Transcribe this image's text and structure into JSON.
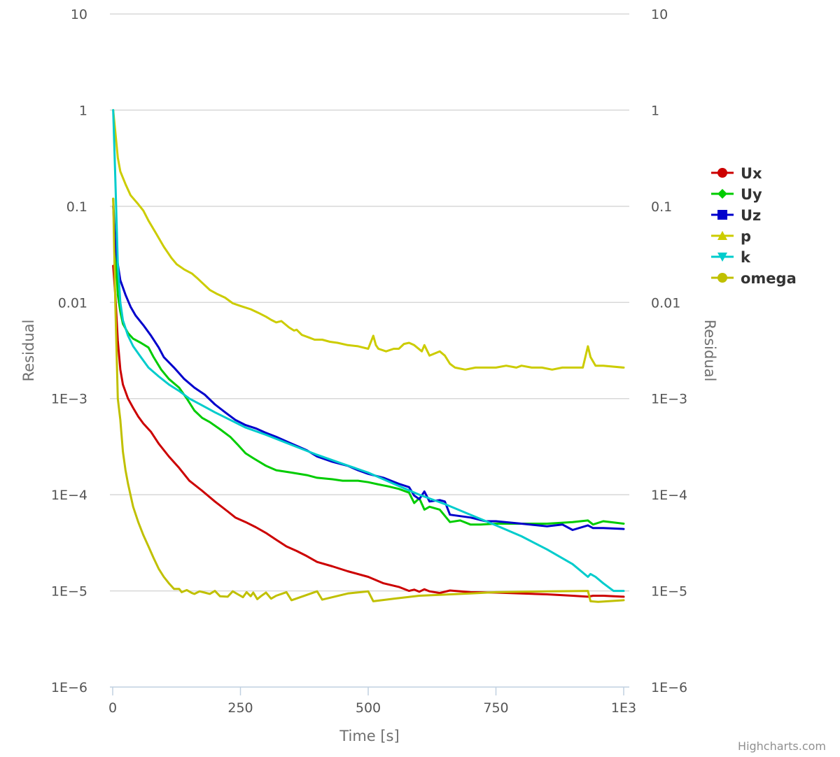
{
  "chart_data": {
    "type": "line",
    "title": "",
    "xlabel": "Time [s]",
    "ylabel": "Residual",
    "ylabel_right": "Residual",
    "xlim": [
      0,
      1000
    ],
    "ylim": [
      1e-06,
      10
    ],
    "y_scale": "log",
    "x_ticks": [
      0,
      250,
      500,
      750,
      1000
    ],
    "x_tick_labels": [
      "0",
      "250",
      "500",
      "750",
      "1E3"
    ],
    "y_ticks": [
      10,
      1,
      0.1,
      0.01,
      0.001,
      0.0001,
      1e-05,
      1e-06
    ],
    "y_tick_labels": [
      "10",
      "1",
      "0.1",
      "0.01",
      "1E−3",
      "1E−4",
      "1E−5",
      "1E−6"
    ],
    "grid": true,
    "legend_position": "right",
    "credits": "Highcharts.com",
    "series": [
      {
        "name": "Ux",
        "color": "#cc0000",
        "marker": "circle",
        "x": [
          1,
          5,
          10,
          15,
          20,
          30,
          40,
          50,
          60,
          75,
          90,
          110,
          130,
          150,
          175,
          200,
          225,
          240,
          260,
          280,
          300,
          320,
          340,
          360,
          380,
          400,
          430,
          460,
          500,
          530,
          560,
          580,
          590,
          600,
          610,
          620,
          640,
          660,
          700,
          750,
          800,
          850,
          900,
          930,
          940,
          960,
          1000
        ],
        "y": [
          0.024,
          0.012,
          0.004,
          0.002,
          0.0014,
          0.001,
          0.0008,
          0.00065,
          0.00055,
          0.00045,
          0.00034,
          0.00025,
          0.00019,
          0.00014,
          0.00011,
          8.5e-05,
          6.7e-05,
          5.8e-05,
          5.2e-05,
          4.6e-05,
          4e-05,
          3.4e-05,
          2.9e-05,
          2.6e-05,
          2.3e-05,
          2e-05,
          1.8e-05,
          1.6e-05,
          1.4e-05,
          1.2e-05,
          1.1e-05,
          1e-05,
          1.03e-05,
          9.8e-06,
          1.04e-05,
          9.9e-06,
          9.5e-06,
          1.01e-05,
          9.7e-06,
          9.6e-06,
          9.4e-06,
          9.2e-06,
          8.9e-06,
          8.7e-06,
          8.9e-06,
          8.9e-06,
          8.7e-06
        ]
      },
      {
        "name": "Uy",
        "color": "#00cc00",
        "marker": "diamond",
        "x": [
          1,
          5,
          10,
          15,
          20,
          30,
          40,
          55,
          70,
          80,
          95,
          110,
          130,
          145,
          160,
          175,
          190,
          210,
          230,
          245,
          260,
          275,
          300,
          320,
          350,
          380,
          400,
          430,
          450,
          480,
          500,
          520,
          540,
          560,
          580,
          590,
          600,
          610,
          620,
          640,
          660,
          680,
          700,
          720,
          750,
          800,
          850,
          900,
          930,
          940,
          960,
          1000
        ],
        "y": [
          0.12,
          0.04,
          0.012,
          0.008,
          0.006,
          0.0048,
          0.0042,
          0.0038,
          0.0034,
          0.0027,
          0.002,
          0.0016,
          0.0013,
          0.001,
          0.00075,
          0.00063,
          0.00057,
          0.00048,
          0.0004,
          0.00033,
          0.00027,
          0.00024,
          0.0002,
          0.00018,
          0.00017,
          0.00016,
          0.00015,
          0.000145,
          0.00014,
          0.00014,
          0.000135,
          0.000128,
          0.000122,
          0.000115,
          0.000105,
          8.2e-05,
          9.2e-05,
          7e-05,
          7.5e-05,
          7e-05,
          5.2e-05,
          5.4e-05,
          4.9e-05,
          4.9e-05,
          5e-05,
          5e-05,
          5e-05,
          5.2e-05,
          5.4e-05,
          4.9e-05,
          5.3e-05,
          5e-05
        ]
      },
      {
        "name": "Uz",
        "color": "#0000cc",
        "marker": "square",
        "x": [
          1,
          5,
          10,
          15,
          25,
          35,
          45,
          60,
          75,
          90,
          100,
          120,
          140,
          160,
          180,
          200,
          220,
          240,
          260,
          280,
          300,
          320,
          350,
          380,
          400,
          430,
          460,
          480,
          500,
          530,
          560,
          580,
          590,
          600,
          610,
          620,
          640,
          650,
          660,
          700,
          730,
          750,
          800,
          850,
          880,
          900,
          930,
          940,
          960,
          1000
        ],
        "y": [
          0.1,
          0.04,
          0.025,
          0.017,
          0.012,
          0.009,
          0.0073,
          0.0058,
          0.0045,
          0.0034,
          0.0027,
          0.0021,
          0.0016,
          0.0013,
          0.0011,
          0.00087,
          0.00072,
          0.0006,
          0.00053,
          0.00049,
          0.00044,
          0.0004,
          0.00034,
          0.00029,
          0.00025,
          0.00022,
          0.0002,
          0.00018,
          0.000165,
          0.00015,
          0.00013,
          0.00012,
          9.8e-05,
          9e-05,
          0.000108,
          8.5e-05,
          8.8e-05,
          8.5e-05,
          6.2e-05,
          5.8e-05,
          5.3e-05,
          5.3e-05,
          5e-05,
          4.7e-05,
          4.9e-05,
          4.3e-05,
          4.8e-05,
          4.5e-05,
          4.5e-05,
          4.4e-05
        ]
      },
      {
        "name": "p",
        "color": "#cccc00",
        "marker": "triangle",
        "x": [
          1,
          5,
          10,
          15,
          25,
          35,
          50,
          60,
          70,
          85,
          100,
          115,
          125,
          140,
          155,
          165,
          175,
          190,
          205,
          220,
          235,
          250,
          270,
          285,
          300,
          310,
          320,
          330,
          345,
          355,
          360,
          370,
          385,
          395,
          410,
          425,
          440,
          460,
          480,
          500,
          510,
          515,
          520,
          535,
          550,
          560,
          570,
          580,
          590,
          605,
          610,
          620,
          640,
          650,
          660,
          670,
          690,
          710,
          730,
          750,
          770,
          790,
          800,
          820,
          840,
          860,
          880,
          900,
          920,
          930,
          935,
          945,
          960,
          1000
        ],
        "y": [
          1,
          0.6,
          0.32,
          0.23,
          0.17,
          0.13,
          0.105,
          0.09,
          0.071,
          0.052,
          0.038,
          0.029,
          0.025,
          0.022,
          0.02,
          0.018,
          0.016,
          0.0135,
          0.0122,
          0.0112,
          0.0098,
          0.0092,
          0.0085,
          0.0078,
          0.0071,
          0.0066,
          0.0062,
          0.0064,
          0.0055,
          0.0051,
          0.0052,
          0.0046,
          0.0043,
          0.0041,
          0.0041,
          0.0039,
          0.0038,
          0.0036,
          0.0035,
          0.0033,
          0.0045,
          0.0036,
          0.0033,
          0.0031,
          0.0033,
          0.0033,
          0.0037,
          0.0038,
          0.0036,
          0.0031,
          0.0036,
          0.0028,
          0.0031,
          0.0028,
          0.0023,
          0.0021,
          0.002,
          0.0021,
          0.0021,
          0.0021,
          0.0022,
          0.0021,
          0.0022,
          0.0021,
          0.0021,
          0.002,
          0.0021,
          0.0021,
          0.0021,
          0.0035,
          0.0027,
          0.0022,
          0.0022,
          0.0021
        ]
      },
      {
        "name": "k",
        "color": "#00cccc",
        "marker": "triangle-down",
        "x": [
          1,
          5,
          10,
          15,
          20,
          30,
          40,
          55,
          70,
          90,
          110,
          130,
          150,
          175,
          200,
          230,
          260,
          300,
          350,
          400,
          450,
          500,
          550,
          600,
          650,
          700,
          750,
          800,
          850,
          900,
          930,
          935,
          945,
          960,
          980,
          1000
        ],
        "y": [
          1,
          0.2,
          0.025,
          0.01,
          0.0065,
          0.0045,
          0.0035,
          0.0027,
          0.0021,
          0.0017,
          0.0014,
          0.0012,
          0.001,
          0.00085,
          0.00072,
          0.0006,
          0.0005,
          0.00042,
          0.00033,
          0.00026,
          0.00021,
          0.00017,
          0.00013,
          0.0001,
          8e-05,
          6.2e-05,
          4.8e-05,
          3.7e-05,
          2.7e-05,
          1.9e-05,
          1.4e-05,
          1.5e-05,
          1.4e-05,
          1.2e-05,
          1e-05,
          1e-05
        ]
      },
      {
        "name": "omega",
        "color": "#c0c000",
        "marker": "circle",
        "x": [
          1,
          5,
          10,
          15,
          20,
          25,
          30,
          40,
          50,
          60,
          70,
          80,
          90,
          100,
          110,
          120,
          130,
          135,
          145,
          155,
          160,
          170,
          180,
          190,
          200,
          210,
          225,
          235,
          245,
          255,
          262,
          270,
          275,
          283,
          290,
          300,
          310,
          320,
          340,
          350,
          400,
          410,
          460,
          500,
          510,
          550,
          600,
          700,
          750,
          800,
          850,
          930,
          935,
          950,
          1000
        ],
        "y": [
          0.12,
          0.01,
          0.001,
          0.0006,
          0.00028,
          0.00018,
          0.00013,
          7.5e-05,
          5.2e-05,
          3.8e-05,
          2.9e-05,
          2.2e-05,
          1.7e-05,
          1.4e-05,
          1.2e-05,
          1.05e-05,
          1.05e-05,
          9.7e-06,
          1.02e-05,
          9.5e-06,
          9.3e-06,
          9.9e-06,
          9.6e-06,
          9.3e-06,
          1e-05,
          8.8e-06,
          8.7e-06,
          9.9e-06,
          9.2e-06,
          8.6e-06,
          9.7e-06,
          8.8e-06,
          9.6e-06,
          8.2e-06,
          8.8e-06,
          9.6e-06,
          8.3e-06,
          8.9e-06,
          9.7e-06,
          8e-06,
          9.9e-06,
          8.1e-06,
          9.4e-06,
          9.9e-06,
          7.8e-06,
          8.3e-06,
          8.9e-06,
          9.4e-06,
          9.7e-06,
          9.8e-06,
          9.9e-06,
          1e-05,
          7.8e-06,
          7.7e-06,
          8e-06
        ]
      }
    ]
  }
}
